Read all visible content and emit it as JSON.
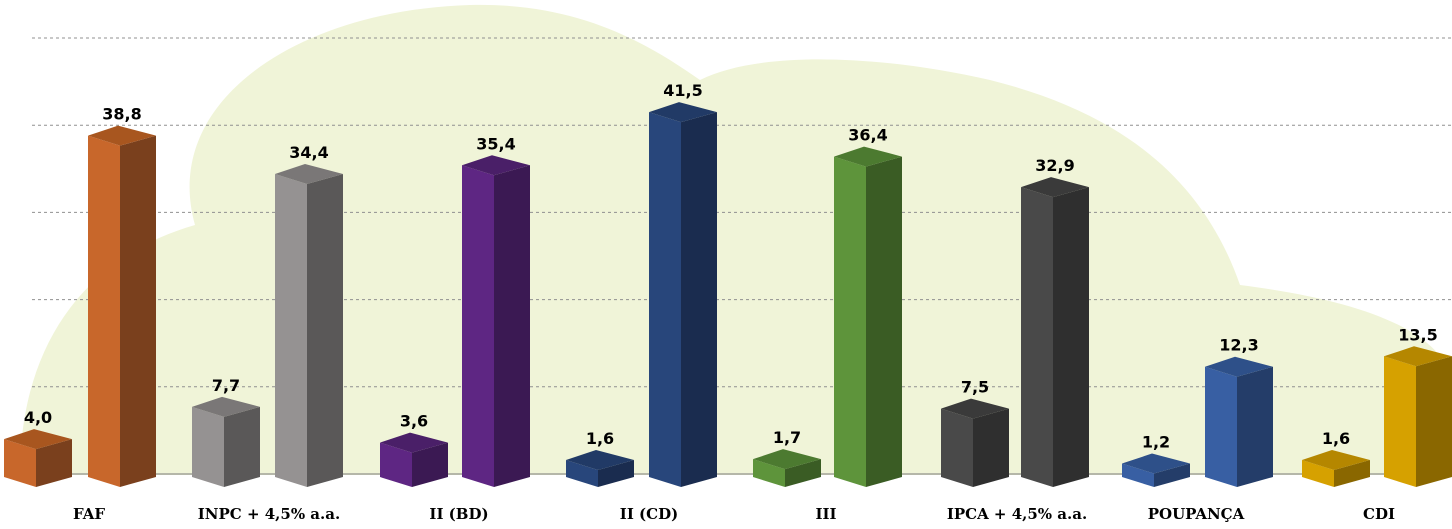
{
  "chart_data": {
    "type": "bar",
    "title": "",
    "xlabel": "",
    "ylabel": "",
    "ylim": [
      0,
      50
    ],
    "grid": true,
    "categories": [
      "FAF",
      "INPC + 4,5% a.a.",
      "II (BD)",
      "II (CD)",
      "III",
      "IPCA + 4,5% a.a.",
      "POUPANÇA",
      "CDI"
    ],
    "series": [
      {
        "values": [
          4.0,
          7.7,
          3.6,
          1.6,
          1.7,
          7.5,
          1.2,
          1.6
        ],
        "labels": [
          "4,0",
          "7,7",
          "3,6",
          "1,6",
          "1,7",
          "7,5",
          "1,2",
          "1,6"
        ]
      },
      {
        "values": [
          38.8,
          34.4,
          35.4,
          41.5,
          36.4,
          32.9,
          12.3,
          13.5
        ],
        "labels": [
          "38,8",
          "34,4",
          "35,4",
          "41,5",
          "36,4",
          "32,9",
          "12,3",
          "13,5"
        ]
      }
    ],
    "colors": [
      {
        "front": "#C8672B",
        "side": "#7A401D",
        "top": "#A8561F"
      },
      {
        "front": "#959292",
        "side": "#5A5858",
        "top": "#7A7777"
      },
      {
        "front": "#5E2683",
        "side": "#3B1953",
        "top": "#4A1F68"
      },
      {
        "front": "#28467B",
        "side": "#1A2C4F",
        "top": "#213A66"
      },
      {
        "front": "#5E943B",
        "side": "#3A5C24",
        "top": "#4C7A30"
      },
      {
        "front": "#494949",
        "side": "#2F2F2F",
        "top": "#3A3A3A"
      },
      {
        "front": "#385FA3",
        "side": "#243D69",
        "top": "#2E5089"
      },
      {
        "front": "#D6A100",
        "side": "#8A6700",
        "top": "#B58700"
      }
    ],
    "background_color": "#F0F4D8",
    "gridline_color": "#909090"
  }
}
